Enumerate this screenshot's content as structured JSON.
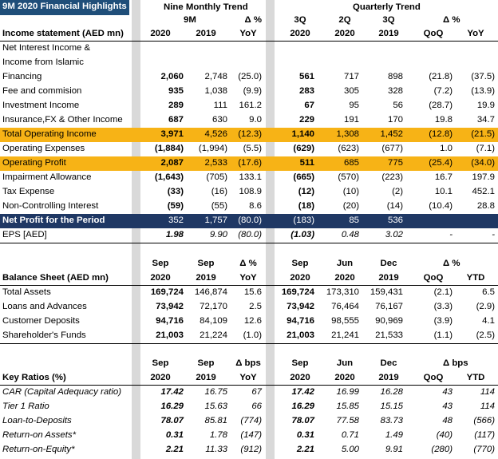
{
  "title": "9M 2020 Financial Highlights",
  "header": {
    "nine_monthly_trend": "Nine Monthly Trend",
    "quarterly_trend": "Quarterly Trend",
    "nm_sub": "9M",
    "delta_pct": "Δ %",
    "q3": "3Q",
    "q2": "2Q",
    "q3b": "3Q",
    "income_label": "Income statement (AED mn)",
    "cols": [
      "2020",
      "2019",
      "YoY",
      "2020",
      "2020",
      "2019",
      "QoQ",
      "YoY"
    ]
  },
  "income": [
    {
      "label": "Net Interest Income &",
      "vals": [
        "",
        "",
        "",
        "",
        "",
        "",
        "",
        ""
      ]
    },
    {
      "label": "Income from Islamic",
      "vals": [
        "",
        "",
        "",
        "",
        "",
        "",
        "",
        ""
      ]
    },
    {
      "label": "Financing",
      "vals": [
        "2,060",
        "2,748",
        "(25.0)",
        "561",
        "717",
        "898",
        "(21.8)",
        "(37.5)"
      ]
    },
    {
      "label": "Fee and commision",
      "vals": [
        "935",
        "1,038",
        "(9.9)",
        "283",
        "305",
        "328",
        "(7.2)",
        "(13.9)"
      ]
    },
    {
      "label": "Investment Income",
      "vals": [
        "289",
        "111",
        "161.2",
        "67",
        "95",
        "56",
        "(28.7)",
        "19.9"
      ]
    },
    {
      "label": "Insurance,FX & Other Income",
      "vals": [
        "687",
        "630",
        "9.0",
        "229",
        "191",
        "170",
        "19.8",
        "34.7"
      ]
    },
    {
      "label": "Total Operating Income",
      "vals": [
        "3,971",
        "4,526",
        "(12.3)",
        "1,140",
        "1,308",
        "1,452",
        "(12.8)",
        "(21.5)"
      ]
    },
    {
      "label": "Operating Expenses",
      "vals": [
        "(1,884)",
        "(1,994)",
        "(5.5)",
        "(629)",
        "(623)",
        "(677)",
        "1.0",
        "(7.1)"
      ]
    },
    {
      "label": "Operating Profit",
      "vals": [
        "2,087",
        "2,533",
        "(17.6)",
        "511",
        "685",
        "775",
        "(25.4)",
        "(34.0)"
      ]
    },
    {
      "label": "Impairment Allowance",
      "vals": [
        "(1,643)",
        "(705)",
        "133.1",
        "(665)",
        "(570)",
        "(223)",
        "16.7",
        "197.9"
      ]
    },
    {
      "label": "Tax Expense",
      "vals": [
        "(33)",
        "(16)",
        "108.9",
        "(12)",
        "(10)",
        "(2)",
        "10.1",
        "452.1"
      ]
    },
    {
      "label": "Non-Controlling Interest",
      "vals": [
        "(59)",
        "(55)",
        "8.6",
        "(18)",
        "(20)",
        "(14)",
        "(10.4)",
        "28.8"
      ]
    },
    {
      "label": "Net Profit for the Period",
      "vals": [
        "352",
        "1,757",
        "(80.0)",
        "(183)",
        "85",
        "536",
        "",
        ""
      ]
    },
    {
      "label": "EPS [AED]",
      "vals": [
        "1.98",
        "9.90",
        "(80.0)",
        "(1.03)",
        "0.48",
        "3.02",
        "-",
        "-"
      ]
    }
  ],
  "balance_header": {
    "top": [
      "Sep",
      "Sep",
      "Δ %",
      "Sep",
      "Jun",
      "Dec",
      "Δ %"
    ],
    "label": "Balance Sheet (AED mn)",
    "cols": [
      "2020",
      "2019",
      "YoY",
      "2020",
      "2020",
      "2019",
      "QoQ",
      "YTD"
    ]
  },
  "balance": [
    {
      "label": "Total Assets",
      "vals": [
        "169,724",
        "146,874",
        "15.6",
        "169,724",
        "173,310",
        "159,431",
        "(2.1)",
        "6.5"
      ]
    },
    {
      "label": "Loans and Advances",
      "vals": [
        "73,942",
        "72,170",
        "2.5",
        "73,942",
        "76,464",
        "76,167",
        "(3.3)",
        "(2.9)"
      ]
    },
    {
      "label": "Customer Deposits",
      "vals": [
        "94,716",
        "84,109",
        "12.6",
        "94,716",
        "98,555",
        "90,969",
        "(3.9)",
        "4.1"
      ]
    },
    {
      "label": "Shareholder's Funds",
      "vals": [
        "21,003",
        "21,224",
        "(1.0)",
        "21,003",
        "21,241",
        "21,533",
        "(1.1)",
        "(2.5)"
      ]
    }
  ],
  "ratios_header": {
    "top": [
      "Sep",
      "Sep",
      "Δ bps",
      "Sep",
      "Jun",
      "Dec",
      "Δ bps"
    ],
    "label": "Key Ratios (%)",
    "cols": [
      "2020",
      "2019",
      "YoY",
      "2020",
      "2020",
      "2019",
      "QoQ",
      "YTD"
    ]
  },
  "ratios": [
    {
      "label": "CAR (Capital Adequacy ratio)",
      "vals": [
        "17.42",
        "16.75",
        "67",
        "17.42",
        "16.99",
        "16.28",
        "43",
        "114"
      ]
    },
    {
      "label": "Tier 1 Ratio",
      "vals": [
        "16.29",
        "15.63",
        "66",
        "16.29",
        "15.85",
        "15.15",
        "43",
        "114"
      ]
    },
    {
      "label": "Loan-to-Deposits",
      "vals": [
        "78.07",
        "85.81",
        "(774)",
        "78.07",
        "77.58",
        "83.73",
        "48",
        "(566)"
      ]
    },
    {
      "label": "Return-on Assets*",
      "vals": [
        "0.31",
        "1.78",
        "(147)",
        "0.31",
        "0.71",
        "1.49",
        "(40)",
        "(117)"
      ]
    },
    {
      "label": "Return-on-Equity*",
      "vals": [
        "2.21",
        "11.33",
        "(912)",
        "2.21",
        "5.00",
        "9.91",
        "(280)",
        "(770)"
      ]
    }
  ]
}
